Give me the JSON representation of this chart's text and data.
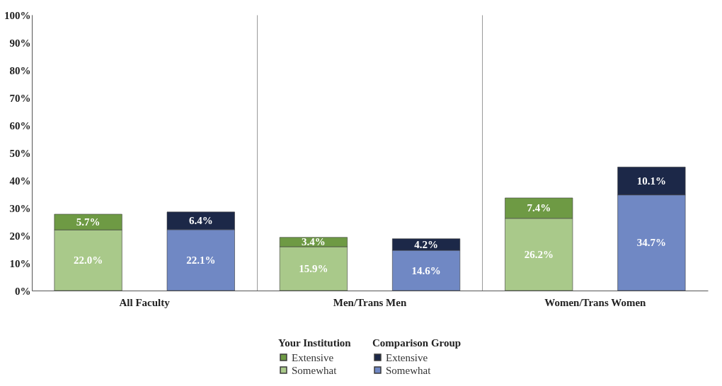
{
  "chart_data": {
    "type": "bar",
    "stacked": true,
    "categories": [
      null,
      null,
      null,
      null,
      null,
      null
    ],
    "annotations": [
      "All Faculty",
      "Men/Trans Men",
      "Women/Trans Women"
    ],
    "legend_title": [
      "Your Institution",
      "Comparison Group"
    ],
    "ylim": [
      0,
      100
    ],
    "yticks": [
      {
        "value": 0,
        "label": "0%"
      },
      {
        "value": 10,
        "label": "10%"
      },
      {
        "value": 20,
        "label": "20%"
      },
      {
        "value": 30,
        "label": "30%"
      },
      {
        "value": 40,
        "label": "40%"
      },
      {
        "value": 50,
        "label": "50%"
      },
      {
        "value": 60,
        "label": "60%"
      },
      {
        "value": 70,
        "label": "70%"
      },
      {
        "value": 80,
        "label": "80%"
      },
      {
        "value": 90,
        "label": "90%"
      },
      {
        "value": 100,
        "label": "100%"
      }
    ],
    "grid": "x",
    "legend": "bottom",
    "series": [
      {
        "name": "Somewhat",
        "color": "#a9c98a",
        "values": [
          22.0,
          null,
          15.9,
          null,
          26.2,
          null
        ],
        "value_labels": [
          "22.0%",
          null,
          "15.9%",
          null,
          "26.2%",
          null
        ]
      },
      {
        "name": "Extensive",
        "color": "#6e9a44",
        "values": [
          5.7,
          null,
          3.4,
          null,
          7.4,
          null
        ],
        "value_labels": [
          "5.7%",
          null,
          "3.4%",
          null,
          "7.4%",
          null
        ]
      },
      {
        "name": "Somewhat",
        "color": "#7088c4",
        "values": [
          null,
          22.1,
          null,
          14.6,
          null,
          34.7
        ],
        "value_labels": [
          null,
          "22.1%",
          null,
          "14.6%",
          null,
          "34.7%"
        ]
      },
      {
        "name": "Extensive",
        "color": "#1c2848",
        "values": [
          null,
          6.4,
          null,
          4.2,
          null,
          10.1
        ],
        "value_labels": [
          null,
          "6.4%",
          null,
          "4.2%",
          null,
          "10.1%"
        ]
      }
    ]
  }
}
